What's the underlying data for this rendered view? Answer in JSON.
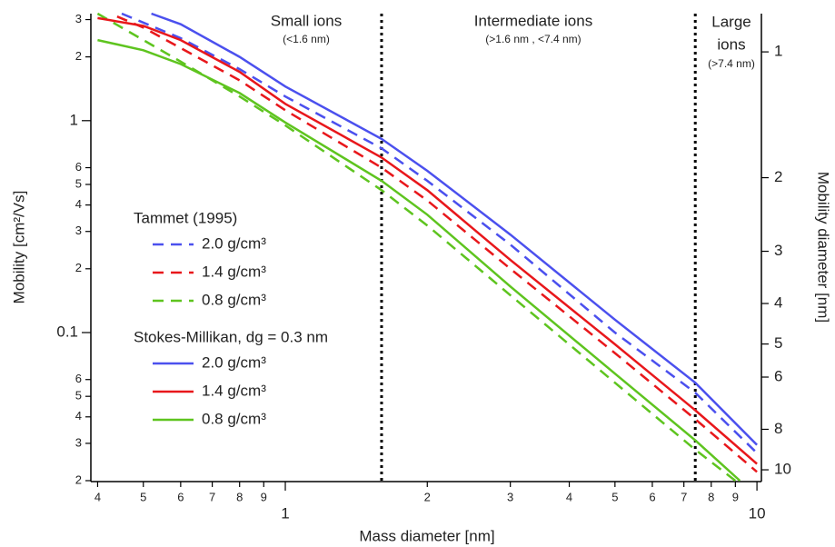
{
  "chart_data": {
    "type": "line",
    "xlabel": "Mass diameter [nm]",
    "ylabel": "Mobility [cm²/Vs]",
    "y2label": "Mobility diameter [nm]",
    "xscale": "log",
    "yscale": "log",
    "y2scale": "log",
    "y2_reversed": true,
    "xlim": [
      0.387,
      10.22
    ],
    "ylim": [
      0.0198,
      3.2
    ],
    "y2lim": [
      0.81,
      10.67
    ],
    "xticks": [
      {
        "value": 0.4,
        "label": "4"
      },
      {
        "value": 0.5,
        "label": "5"
      },
      {
        "value": 0.6,
        "label": "6"
      },
      {
        "value": 0.7,
        "label": "7"
      },
      {
        "value": 0.8,
        "label": "8"
      },
      {
        "value": 0.9,
        "label": "9"
      },
      1,
      2,
      3,
      4,
      5,
      6,
      7,
      8,
      9,
      10
    ],
    "yticks": [
      3,
      2,
      1,
      {
        "value": 0.6,
        "label": "6"
      },
      {
        "value": 0.5,
        "label": "5"
      },
      {
        "value": 0.4,
        "label": "4"
      },
      {
        "value": 0.3,
        "label": "3"
      },
      {
        "value": 0.2,
        "label": "2"
      },
      0.1,
      {
        "value": 0.06,
        "label": "6"
      },
      {
        "value": 0.05,
        "label": "5"
      },
      {
        "value": 0.04,
        "label": "4"
      },
      {
        "value": 0.03,
        "label": "3"
      },
      {
        "value": 0.02,
        "label": "2"
      }
    ],
    "y2ticks": [
      1,
      2,
      3,
      4,
      5,
      6,
      8,
      10
    ],
    "vlines": [
      1.6,
      7.4
    ],
    "regions": [
      {
        "label": "Small ions",
        "note": "(<1.6 nm)"
      },
      {
        "label": "Intermediate ions",
        "note": "(>1.6 nm , <7.4 nm)"
      },
      {
        "label": "Large",
        "label2": "ions",
        "note": "(>7.4 nm)"
      }
    ],
    "legend_titles": [
      "Tammet (1995)",
      "Stokes-Millikan, dg = 0.3 nm"
    ],
    "series": [
      {
        "name": "2.0 g/cm³",
        "color": "#4b50ee",
        "dashed": true,
        "x": [
          0.45,
          0.6,
          0.8,
          1,
          1.6,
          2,
          3,
          5,
          7.4,
          10
        ],
        "values": [
          3.2,
          2.45,
          1.75,
          1.3,
          0.74,
          0.52,
          0.26,
          0.1,
          0.052,
          0.027
        ]
      },
      {
        "name": "1.4 g/cm³",
        "color": "#e8171b",
        "dashed": true,
        "x": [
          0.44,
          0.5,
          0.6,
          0.8,
          1,
          1.6,
          2,
          3,
          5,
          7.4,
          10
        ],
        "values": [
          3.1,
          2.75,
          2.2,
          1.55,
          1.12,
          0.6,
          0.42,
          0.2,
          0.08,
          0.039,
          0.022
        ]
      },
      {
        "name": "0.8 g/cm³",
        "color": "#5ec41f",
        "dashed": true,
        "x": [
          0.4,
          0.5,
          0.6,
          0.8,
          1,
          1.6,
          2,
          3,
          5,
          7.4,
          9
        ],
        "values": [
          3.2,
          2.4,
          1.9,
          1.3,
          0.95,
          0.47,
          0.32,
          0.15,
          0.058,
          0.028,
          0.02
        ]
      },
      {
        "name": "2.0 g/cm³",
        "color": "#4b50ee",
        "dashed": false,
        "x": [
          0.52,
          0.6,
          0.8,
          1,
          1.6,
          2,
          3,
          5,
          7.4,
          10
        ],
        "values": [
          3.2,
          2.85,
          2.0,
          1.45,
          0.82,
          0.58,
          0.29,
          0.115,
          0.058,
          0.0295
        ]
      },
      {
        "name": "1.4 g/cm³",
        "color": "#e8171b",
        "dashed": false,
        "x": [
          0.4,
          0.5,
          0.6,
          0.8,
          1,
          1.6,
          2,
          3,
          5,
          7.4,
          10
        ],
        "values": [
          3.05,
          2.8,
          2.4,
          1.7,
          1.2,
          0.67,
          0.47,
          0.22,
          0.088,
          0.043,
          0.024
        ]
      },
      {
        "name": "0.8 g/cm³",
        "color": "#5ec41f",
        "dashed": false,
        "x": [
          0.4,
          0.5,
          0.6,
          0.8,
          1,
          1.6,
          2,
          3,
          5,
          7.4,
          9.2
        ],
        "values": [
          2.4,
          2.15,
          1.85,
          1.35,
          0.98,
          0.52,
          0.36,
          0.165,
          0.064,
          0.031,
          0.02
        ]
      }
    ]
  }
}
